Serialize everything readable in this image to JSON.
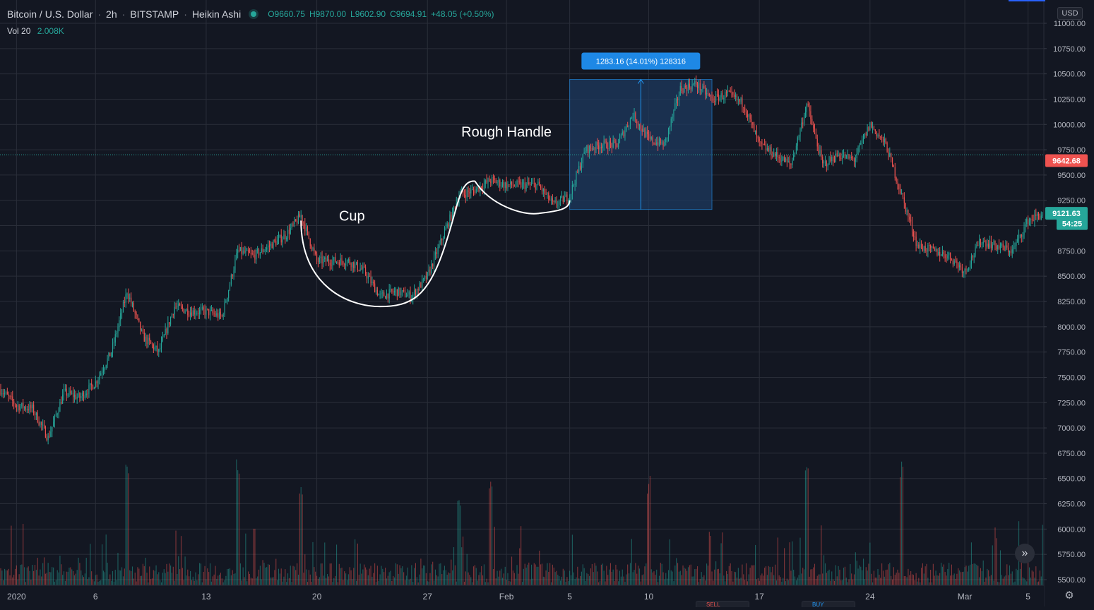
{
  "header": {
    "symbol": "Bitcoin / U.S. Dollar",
    "interval": "2h",
    "exchange": "BITSTAMP",
    "chart_style": "Heikin Ashi",
    "ohlc": {
      "o_label": "O",
      "o": "9660.75",
      "h_label": "H",
      "h": "9870.00",
      "l_label": "L",
      "l": "9602.90",
      "c_label": "C",
      "c": "9694.91",
      "change": "+48.05 (+0.50%)"
    }
  },
  "volume_legend": {
    "label": "Vol 20",
    "value": "2.008K"
  },
  "currency": "USD",
  "bottom_tabs": [
    "SELL",
    "BUY"
  ],
  "colors": {
    "background": "#131722",
    "grid": "#2a2e39",
    "up": "#26a69a",
    "down": "#ef5350",
    "text": "#d1d4dc",
    "axis_text": "#b2b5be",
    "measure_fill": "#1e3a5f",
    "measure_line": "#2196f3",
    "last_price_line": "#26a69a"
  },
  "chart_data": {
    "type": "candlestick",
    "title": "",
    "xlabel": "",
    "ylabel": "",
    "ylim": [
      5500,
      11000
    ],
    "y_ticks": [
      5500,
      5750,
      6000,
      6250,
      6500,
      6750,
      7000,
      7250,
      7500,
      7750,
      8000,
      8250,
      8500,
      8750,
      9000,
      9250,
      9500,
      9750,
      10000,
      10250,
      10500,
      10750,
      11000
    ],
    "y_tick_labels": [
      "5500.00",
      "5750.00",
      "6000.00",
      "6250.00",
      "6500.00",
      "6750.00",
      "7000.00",
      "7250.00",
      "7500.00",
      "7750.00",
      "8000.00",
      "8250.00",
      "8500.00",
      "8750.00",
      "9000.00",
      "9250.00",
      "9500.00",
      "9750.00",
      "10000.00",
      "10250.00",
      "10500.00",
      "10750.00",
      "11000.00"
    ],
    "x_domain": [
      "2019-12-31",
      "2020-03-06"
    ],
    "x_tick_dates": [
      "2020-01-01",
      "2020-01-06",
      "2020-01-13",
      "2020-01-20",
      "2020-01-27",
      "2020-02-01",
      "2020-02-05",
      "2020-02-10",
      "2020-02-17",
      "2020-02-24",
      "2020-03-01",
      "2020-03-05"
    ],
    "x_tick_labels": [
      "2020",
      "6",
      "13",
      "20",
      "27",
      "Feb",
      "5",
      "10",
      "17",
      "24",
      "Mar",
      "5"
    ],
    "grid": true,
    "price_path": [
      {
        "x": "2019-12-31",
        "y": 7380
      },
      {
        "x": "2020-01-01",
        "y": 7220
      },
      {
        "x": "2020-01-02",
        "y": 7190
      },
      {
        "x": "2020-01-03",
        "y": 6900
      },
      {
        "x": "2020-01-04",
        "y": 7350
      },
      {
        "x": "2020-01-05",
        "y": 7300
      },
      {
        "x": "2020-01-06",
        "y": 7450
      },
      {
        "x": "2020-01-07",
        "y": 7750
      },
      {
        "x": "2020-01-08",
        "y": 8350
      },
      {
        "x": "2020-01-09",
        "y": 7900
      },
      {
        "x": "2020-01-10",
        "y": 7750
      },
      {
        "x": "2020-01-11",
        "y": 8200
      },
      {
        "x": "2020-01-12",
        "y": 8150
      },
      {
        "x": "2020-01-13",
        "y": 8150
      },
      {
        "x": "2020-01-14",
        "y": 8100
      },
      {
        "x": "2020-01-15",
        "y": 8750
      },
      {
        "x": "2020-01-16",
        "y": 8700
      },
      {
        "x": "2020-01-17",
        "y": 8800
      },
      {
        "x": "2020-01-18",
        "y": 8900
      },
      {
        "x": "2020-01-19",
        "y": 9100
      },
      {
        "x": "2020-01-20",
        "y": 8650
      },
      {
        "x": "2020-01-21",
        "y": 8650
      },
      {
        "x": "2020-01-22",
        "y": 8650
      },
      {
        "x": "2020-01-23",
        "y": 8550
      },
      {
        "x": "2020-01-24",
        "y": 8300
      },
      {
        "x": "2020-01-25",
        "y": 8350
      },
      {
        "x": "2020-01-26",
        "y": 8300
      },
      {
        "x": "2020-01-27",
        "y": 8500
      },
      {
        "x": "2020-01-28",
        "y": 8900
      },
      {
        "x": "2020-01-29",
        "y": 9300
      },
      {
        "x": "2020-01-30",
        "y": 9350
      },
      {
        "x": "2020-01-31",
        "y": 9450
      },
      {
        "x": "2020-02-01",
        "y": 9400
      },
      {
        "x": "2020-02-02",
        "y": 9400
      },
      {
        "x": "2020-02-03",
        "y": 9400
      },
      {
        "x": "2020-02-04",
        "y": 9200
      },
      {
        "x": "2020-02-05",
        "y": 9300
      },
      {
        "x": "2020-02-06",
        "y": 9750
      },
      {
        "x": "2020-02-07",
        "y": 9800
      },
      {
        "x": "2020-02-08",
        "y": 9800
      },
      {
        "x": "2020-02-09",
        "y": 10100
      },
      {
        "x": "2020-02-10",
        "y": 9850
      },
      {
        "x": "2020-02-11",
        "y": 9800
      },
      {
        "x": "2020-02-12",
        "y": 10350
      },
      {
        "x": "2020-02-13",
        "y": 10400
      },
      {
        "x": "2020-02-14",
        "y": 10250
      },
      {
        "x": "2020-02-15",
        "y": 10300
      },
      {
        "x": "2020-02-16",
        "y": 10200
      },
      {
        "x": "2020-02-17",
        "y": 9800
      },
      {
        "x": "2020-02-18",
        "y": 9700
      },
      {
        "x": "2020-02-19",
        "y": 9600
      },
      {
        "x": "2020-02-20",
        "y": 10200
      },
      {
        "x": "2020-02-21",
        "y": 9600
      },
      {
        "x": "2020-02-22",
        "y": 9700
      },
      {
        "x": "2020-02-23",
        "y": 9650
      },
      {
        "x": "2020-02-24",
        "y": 10000
      },
      {
        "x": "2020-02-25",
        "y": 9800
      },
      {
        "x": "2020-02-26",
        "y": 9300
      },
      {
        "x": "2020-02-27",
        "y": 8800
      },
      {
        "x": "2020-02-28",
        "y": 8750
      },
      {
        "x": "2020-02-29",
        "y": 8700
      },
      {
        "x": "2020-03-01",
        "y": 8550
      },
      {
        "x": "2020-03-02",
        "y": 8850
      },
      {
        "x": "2020-03-03",
        "y": 8800
      },
      {
        "x": "2020-03-04",
        "y": 8750
      },
      {
        "x": "2020-03-05",
        "y": 9050
      },
      {
        "x": "2020-03-06",
        "y": 9120
      }
    ],
    "volume": {
      "label": "Vol 20",
      "last_value": "2.008K",
      "spikes": [
        {
          "x": "2020-01-08",
          "value": 1.0
        },
        {
          "x": "2020-01-15",
          "value": 1.0
        },
        {
          "x": "2020-01-19",
          "value": 0.8
        },
        {
          "x": "2020-01-29",
          "value": 0.7
        },
        {
          "x": "2020-01-31",
          "value": 0.85
        },
        {
          "x": "2020-02-10",
          "value": 0.85
        },
        {
          "x": "2020-02-20",
          "value": 0.95
        },
        {
          "x": "2020-02-26",
          "value": 1.0
        },
        {
          "x": "2020-03-06",
          "value": 0.5
        }
      ]
    },
    "price_labels": [
      {
        "value": 9642.68,
        "label": "9642.68",
        "color": "#ef5350"
      },
      {
        "value": 9121.63,
        "label": "9121.63",
        "color": "#26a69a"
      },
      {
        "value": 9020,
        "label": "54:25",
        "color": "#26a69a"
      }
    ],
    "dotted_line_price": 9700,
    "annotations": {
      "cup": {
        "label": "Cup"
      },
      "handle": {
        "label": "Rough Handle"
      },
      "measure": {
        "label": "1283.16 (14.01%) 128316",
        "from_date": "2020-02-05",
        "to_date": "2020-02-14",
        "low": 9160,
        "high": 10445
      }
    }
  }
}
